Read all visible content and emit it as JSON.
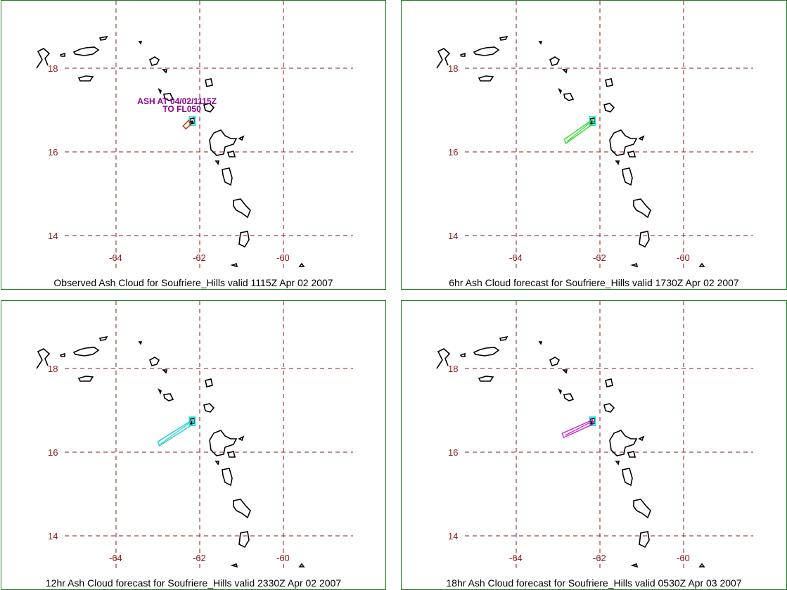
{
  "panels": [
    {
      "caption": "Observed Ash Cloud for Soufriere_Hills valid 1115Z Apr 02 2007",
      "ash_color": "#b5481d",
      "ash_kind": "observed",
      "annotation": [
        "ASH AT 04/02/1115Z",
        "TO FL050"
      ]
    },
    {
      "caption": "6hr Ash Cloud forecast for Soufriere_Hills valid 1730Z Apr 02 2007",
      "ash_color": "#33dd33",
      "ash_kind": "plume",
      "plume_end": [
        -62.85,
        16.25
      ]
    },
    {
      "caption": "12hr Ash Cloud forecast for Soufriere_Hills valid 2330Z Apr 02 2007",
      "ash_color": "#22cccc",
      "ash_kind": "plume",
      "plume_end": [
        -63.0,
        16.2
      ]
    },
    {
      "caption": "18hr Ash Cloud forecast for Soufriere_Hills valid 0530Z Apr 03 2007",
      "ash_color": "#cc22cc",
      "ash_kind": "plume",
      "plume_end": [
        -62.9,
        16.4
      ]
    }
  ],
  "map": {
    "lon_ticks": [
      {
        "v": -64,
        "t": "-64"
      },
      {
        "v": -62,
        "t": "-62"
      },
      {
        "v": -60,
        "t": "-60"
      }
    ],
    "lat_ticks": [
      {
        "v": 18,
        "t": "18"
      },
      {
        "v": 16,
        "t": "16"
      },
      {
        "v": 14,
        "t": "14"
      }
    ],
    "grid_color": "#8b1a1a",
    "coast_color": "#000000",
    "volcano_color": "#22dddd",
    "volcano": [
      -62.18,
      16.72
    ]
  }
}
